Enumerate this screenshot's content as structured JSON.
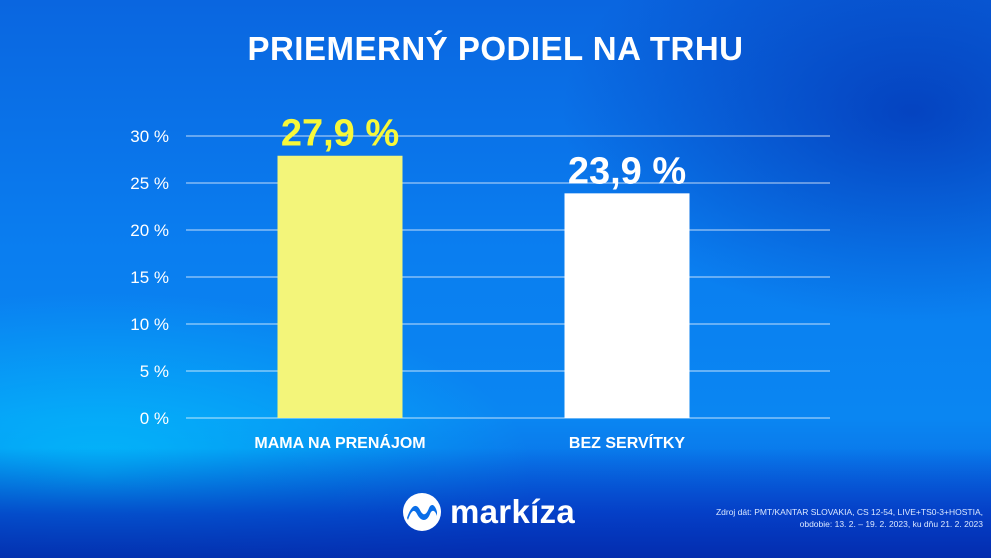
{
  "header": {
    "title": "PRIEMERNÝ PODIEL NA TRHU"
  },
  "chart_data": {
    "type": "bar",
    "title": "PRIEMERNÝ PODIEL NA TRHU",
    "categories": [
      "MAMA NA PRENÁJOM",
      "BEZ SERVÍTKY"
    ],
    "values": [
      27.9,
      23.9
    ],
    "value_labels": [
      "27,9 %",
      "23,9 %"
    ],
    "bar_colors": [
      "#f3f57a",
      "#ffffff"
    ],
    "value_label_colors": [
      "#f6f83a",
      "#ffffff"
    ],
    "yticks": [
      0,
      5,
      10,
      15,
      20,
      25,
      30
    ],
    "ytick_labels": [
      "0 %",
      "5 %",
      "10 %",
      "15 %",
      "20 %",
      "25 %",
      "30 %"
    ],
    "ylim": [
      0,
      30
    ],
    "grid": true,
    "xlabel": "",
    "ylabel": ""
  },
  "footer": {
    "logo_text": "markíza",
    "logo_icon": "markiza-wave-logo-icon",
    "source_line1": "Zdroj dát: PMT/KANTAR SLOVAKIA, CS 12-54, LIVE+TS0-3+HOSTIA,",
    "source_line2": "obdobie: 13. 2. – 19. 2. 2023, ku dňu 21. 2. 2023"
  }
}
